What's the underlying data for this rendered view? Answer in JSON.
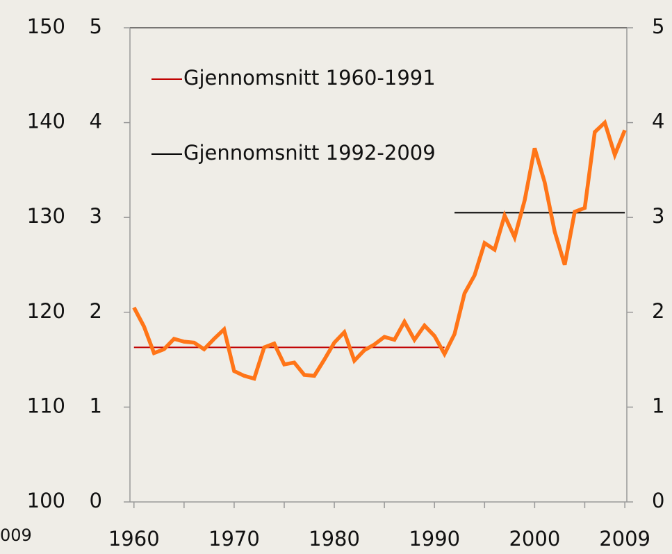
{
  "chart_data": {
    "type": "line",
    "x": [
      1960,
      1961,
      1962,
      1963,
      1964,
      1965,
      1966,
      1967,
      1968,
      1969,
      1970,
      1971,
      1972,
      1973,
      1974,
      1975,
      1976,
      1977,
      1978,
      1979,
      1980,
      1981,
      1982,
      1983,
      1984,
      1985,
      1986,
      1987,
      1988,
      1989,
      1990,
      1991,
      1992,
      1993,
      1994,
      1995,
      1996,
      1997,
      1998,
      1999,
      2000,
      2001,
      2002,
      2003,
      2004,
      2005,
      2006,
      2007,
      2008,
      2009
    ],
    "series": [
      {
        "color": "#ff7518",
        "values": [
          2.05,
          1.85,
          1.57,
          1.61,
          1.72,
          1.69,
          1.68,
          1.61,
          1.72,
          1.82,
          1.38,
          1.33,
          1.3,
          1.63,
          1.67,
          1.45,
          1.47,
          1.34,
          1.33,
          1.5,
          1.68,
          1.79,
          1.49,
          1.6,
          1.66,
          1.74,
          1.71,
          1.9,
          1.71,
          1.86,
          1.75,
          1.56,
          1.77,
          2.2,
          2.39,
          2.73,
          2.66,
          3.02,
          2.79,
          3.18,
          3.73,
          3.37,
          2.85,
          2.5,
          3.06,
          3.1,
          3.9,
          4.0,
          3.66,
          3.92
        ]
      }
    ],
    "averages": [
      {
        "name": "Gjennomsnitt 1960-1991",
        "color": "#c00000",
        "value": 1.63,
        "from": 1960,
        "to": 1991
      },
      {
        "name": "Gjennomsnitt 1992-2009",
        "color": "#000000",
        "value": 3.05,
        "from": 1992,
        "to": 2009
      }
    ],
    "xlim": [
      1959.6,
      2009.2
    ],
    "xticks": [
      1960,
      1965,
      1970,
      1975,
      1980,
      1985,
      1990,
      1995,
      2000,
      2005,
      2009
    ],
    "xtick_labels": [
      1960,
      1970,
      1980,
      1990,
      2000,
      2009
    ],
    "ylim": [
      0,
      5
    ],
    "yticks": [
      0,
      1,
      2,
      3,
      4,
      5
    ],
    "y2lim": [
      0,
      5
    ],
    "y2ticks": [
      0,
      1,
      2,
      3,
      4,
      5
    ],
    "cropped_neighbor": {
      "yticks": [
        100,
        110,
        120,
        130,
        140,
        150
      ],
      "x_label": "009"
    }
  }
}
